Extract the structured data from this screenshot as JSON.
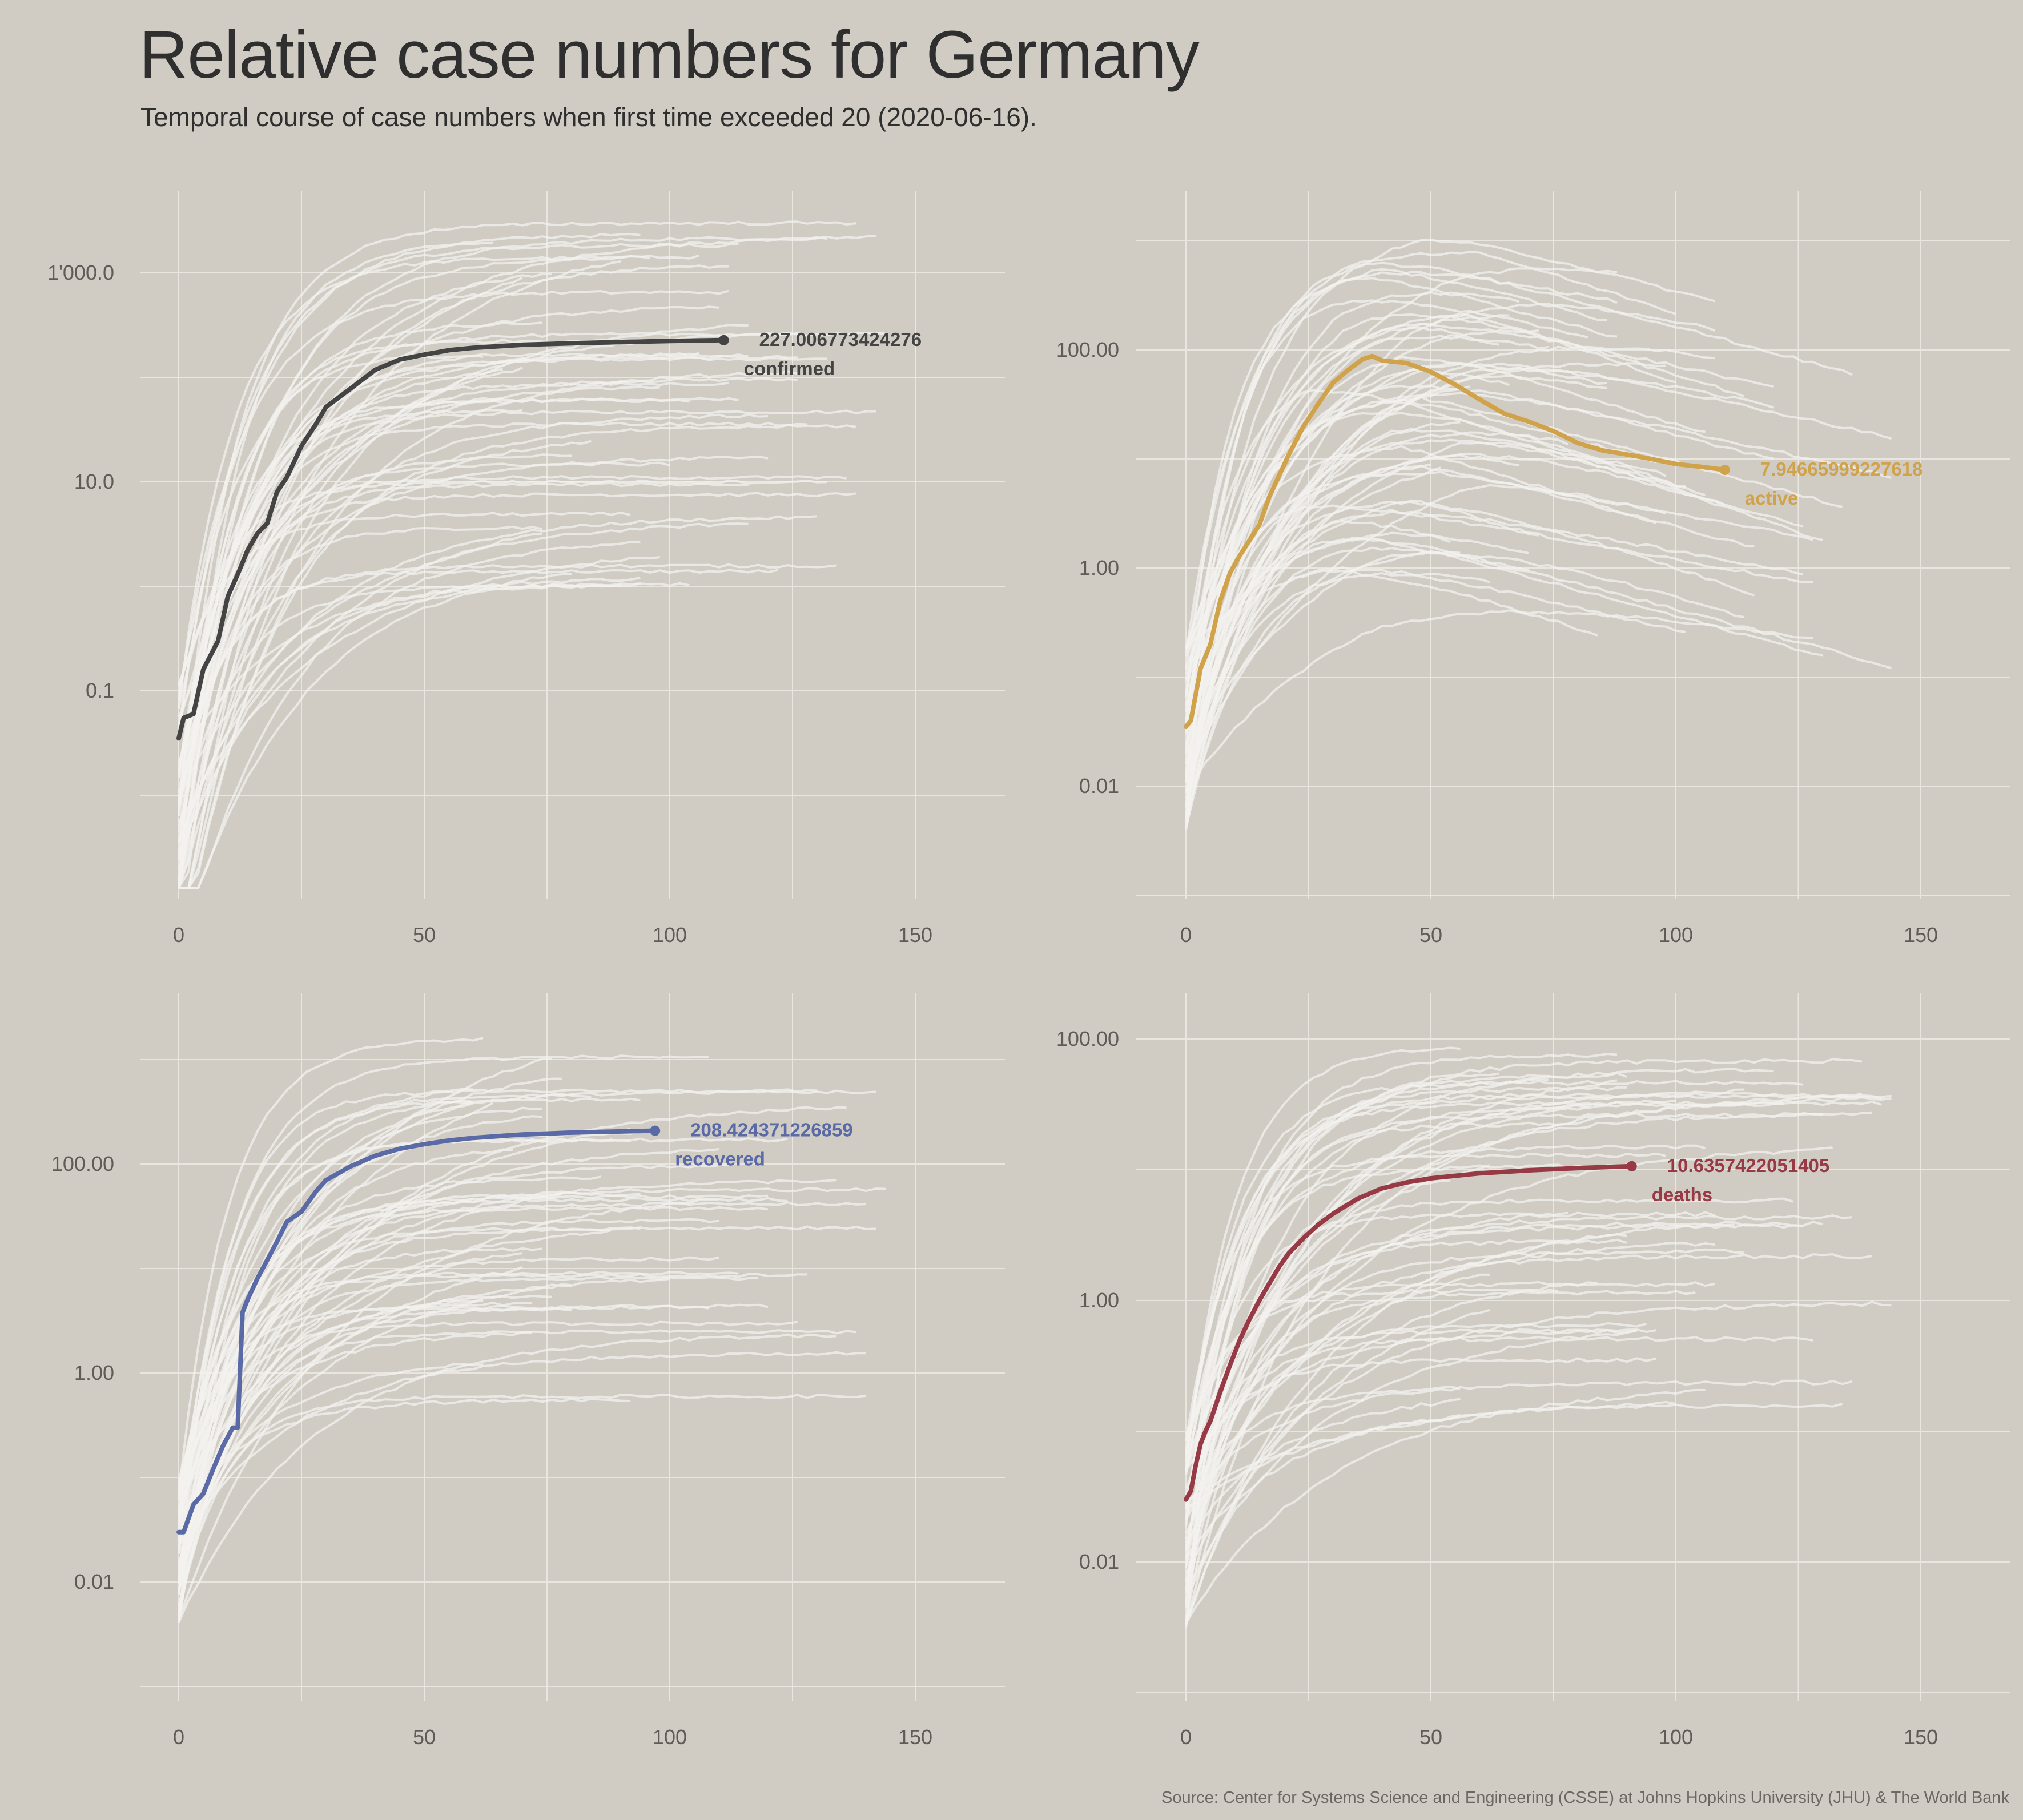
{
  "title": "Relative case numbers for Germany",
  "subtitle": "Temporal course of case numbers when first time exceeded 20 (2020-06-16).",
  "source": "Source: Center for Systems Science and Engineering (CSSE) at Johns Hopkins University (JHU) & The World Bank",
  "colors": {
    "background": "#d0cbc3",
    "grid": "#e9e6e0",
    "other_countries": "#f3f2ef",
    "confirmed": "#444444",
    "active": "#d0a24a",
    "recovered": "#5a6aa6",
    "deaths": "#983a45"
  },
  "chart_data": [
    {
      "type": "line",
      "y_scale": "log",
      "grid": true,
      "xlim": [
        -5,
        168
      ],
      "ylim_exp": [
        -2.0,
        1.4
      ],
      "x_ticks": [
        0,
        50,
        100,
        150
      ],
      "x_tick_labels": [
        "0",
        "50",
        "100",
        "150"
      ],
      "y_ticks": [
        0.1,
        10,
        1000
      ],
      "y_tick_labels": [
        "0.1",
        "10.0",
        "1'000.0"
      ],
      "highlight": {
        "name": "confirmed",
        "value_label": "227.006773424276",
        "color": "#444444",
        "x": [
          0,
          1,
          3,
          5,
          8,
          10,
          12,
          14,
          16,
          18,
          20,
          22,
          25,
          28,
          30,
          35,
          40,
          45,
          50,
          55,
          60,
          70,
          80,
          90,
          100,
          111
        ],
        "y": [
          0.035,
          0.055,
          0.06,
          0.16,
          0.3,
          0.8,
          1.3,
          2.2,
          3.2,
          4.0,
          8,
          11,
          22,
          36,
          52,
          78,
          118,
          148,
          165,
          182,
          192,
          205,
          212,
          218,
          223,
          227
        ]
      },
      "background": {
        "count": 60,
        "x_end_range": [
          60,
          146
        ],
        "y_start_exp_range": [
          -3.7,
          -0.85
        ],
        "y_end_exp_range": [
          0,
          3.5
        ],
        "shape": "saturating"
      }
    },
    {
      "type": "line",
      "y_scale": "log",
      "grid": true,
      "xlim": [
        -5,
        168
      ],
      "ylim_exp": [
        -1.4,
        1.6
      ],
      "x_ticks": [
        0,
        50,
        100,
        150
      ],
      "x_tick_labels": [
        "0",
        "50",
        "100",
        "150"
      ],
      "y_ticks": [
        0.01,
        1,
        100
      ],
      "y_tick_labels": [
        "0.01",
        "1.00",
        "100.00"
      ],
      "highlight": {
        "name": "active",
        "value_label": "7.94665999227618",
        "color": "#d0a24a",
        "x": [
          0,
          1,
          3,
          5,
          7,
          9,
          11,
          13,
          15,
          17,
          19,
          21,
          24,
          27,
          30,
          33,
          36,
          38,
          40,
          45,
          50,
          55,
          60,
          65,
          70,
          75,
          80,
          85,
          90,
          95,
          100,
          105,
          110
        ],
        "y": [
          0.035,
          0.04,
          0.12,
          0.2,
          0.5,
          0.9,
          1.3,
          1.8,
          2.5,
          4.5,
          7,
          11,
          20,
          32,
          50,
          65,
          82,
          88,
          80,
          76,
          63,
          48,
          35,
          26,
          22,
          18,
          14,
          12,
          11,
          10,
          9,
          8.5,
          7.95
        ]
      },
      "background": {
        "count": 60,
        "x_end_range": [
          50,
          146
        ],
        "y_start_exp_range": [
          -2.4,
          -0.7
        ],
        "y_end_exp_range": [
          -0.8,
          2.4
        ],
        "shape": "rise_and_fall"
      }
    },
    {
      "type": "line",
      "y_scale": "log",
      "grid": true,
      "xlim": [
        -5,
        168
      ],
      "ylim_exp": [
        -1.4,
        2.0
      ],
      "x_ticks": [
        0,
        50,
        100,
        150
      ],
      "x_tick_labels": [
        "0",
        "50",
        "100",
        "150"
      ],
      "y_ticks": [
        0.01,
        1,
        100
      ],
      "y_tick_labels": [
        "0.01",
        "1.00",
        "100.00"
      ],
      "highlight": {
        "name": "recovered",
        "value_label": "208.424371226859",
        "color": "#5a6aa6",
        "x": [
          0,
          1,
          3,
          5,
          7,
          9,
          11,
          12,
          13,
          14,
          16,
          18,
          20,
          22,
          25,
          28,
          30,
          35,
          40,
          45,
          50,
          55,
          60,
          70,
          80,
          90,
          97
        ],
        "y": [
          0.03,
          0.03,
          0.055,
          0.07,
          0.12,
          0.2,
          0.3,
          0.3,
          3.8,
          5,
          8,
          12,
          18,
          28,
          35,
          55,
          70,
          95,
          120,
          140,
          155,
          168,
          178,
          192,
          200,
          205,
          208.4
        ]
      },
      "background": {
        "count": 60,
        "x_end_range": [
          60,
          146
        ],
        "y_start_exp_range": [
          -2.4,
          -1.0
        ],
        "y_end_exp_range": [
          -0.3,
          3.4
        ],
        "shape": "saturating"
      }
    },
    {
      "type": "line",
      "y_scale": "log",
      "grid": true,
      "xlim": [
        -5,
        168
      ],
      "ylim_exp": [
        -1.4,
        1.6
      ],
      "x_ticks": [
        0,
        50,
        100,
        150
      ],
      "x_tick_labels": [
        "0",
        "50",
        "100",
        "150"
      ],
      "y_ticks": [
        0.01,
        1,
        100
      ],
      "y_tick_labels": [
        "0.01",
        "1.00",
        "100.00"
      ],
      "highlight": {
        "name": "deaths",
        "value_label": "10.6357422051405",
        "color": "#983a45",
        "x": [
          0,
          1,
          2,
          3,
          4,
          5,
          7,
          9,
          11,
          13,
          15,
          17,
          19,
          21,
          24,
          27,
          30,
          35,
          40,
          45,
          50,
          60,
          70,
          80,
          91
        ],
        "y": [
          0.03,
          0.035,
          0.055,
          0.08,
          0.1,
          0.12,
          0.2,
          0.32,
          0.5,
          0.72,
          1.0,
          1.35,
          1.8,
          2.3,
          3.0,
          3.8,
          4.6,
          6.0,
          7.2,
          8.0,
          8.6,
          9.4,
          9.9,
          10.3,
          10.64
        ]
      },
      "background": {
        "count": 60,
        "x_end_range": [
          55,
          146
        ],
        "y_start_exp_range": [
          -2.5,
          -1.0
        ],
        "y_end_exp_range": [
          -0.8,
          2.1
        ],
        "shape": "saturating"
      }
    }
  ]
}
